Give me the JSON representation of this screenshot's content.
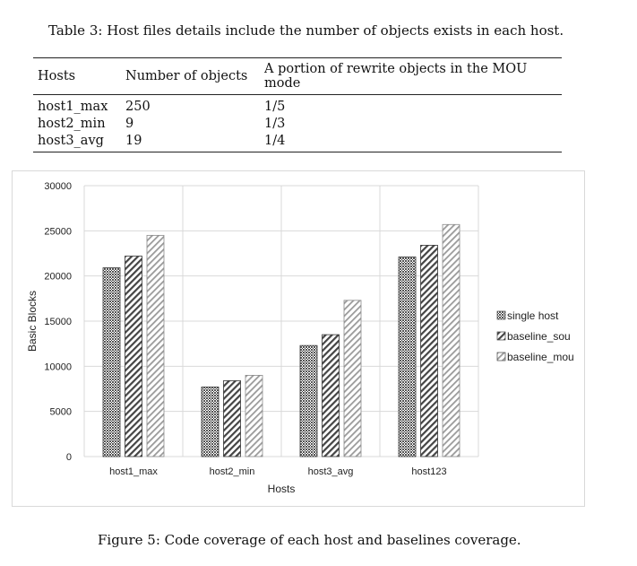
{
  "table": {
    "caption": "Table 3: Host files details include the number of objects exists in each host.",
    "headers": [
      "Hosts",
      "Number of objects",
      "A portion of rewrite objects in the MOU mode"
    ],
    "rows": [
      [
        "host1_max",
        "250",
        "1/5"
      ],
      [
        "host2_min",
        "9",
        "1/3"
      ],
      [
        "host3_avg",
        "19",
        "1/4"
      ]
    ]
  },
  "figure": {
    "caption": "Figure 5: Code coverage of each host and baselines coverage."
  },
  "chart_data": {
    "type": "bar",
    "title": "",
    "xlabel": "Hosts",
    "ylabel": "Basic Blocks",
    "ylim": [
      0,
      30000
    ],
    "yticks": [
      0,
      5000,
      10000,
      15000,
      20000,
      25000,
      30000
    ],
    "categories": [
      "host1_max",
      "host2_min",
      "host3_avg",
      "host123"
    ],
    "series": [
      {
        "name": "single host",
        "values": [
          20900,
          7700,
          12300,
          22100
        ]
      },
      {
        "name": "baseline_sou",
        "values": [
          22200,
          8400,
          13500,
          23400
        ]
      },
      {
        "name": "baseline_mou",
        "values": [
          24500,
          9000,
          17300,
          25700
        ]
      }
    ],
    "grid": true,
    "legend": "right",
    "patterns": [
      "dense-dark",
      "diagonal-dark",
      "diagonal-light"
    ]
  }
}
